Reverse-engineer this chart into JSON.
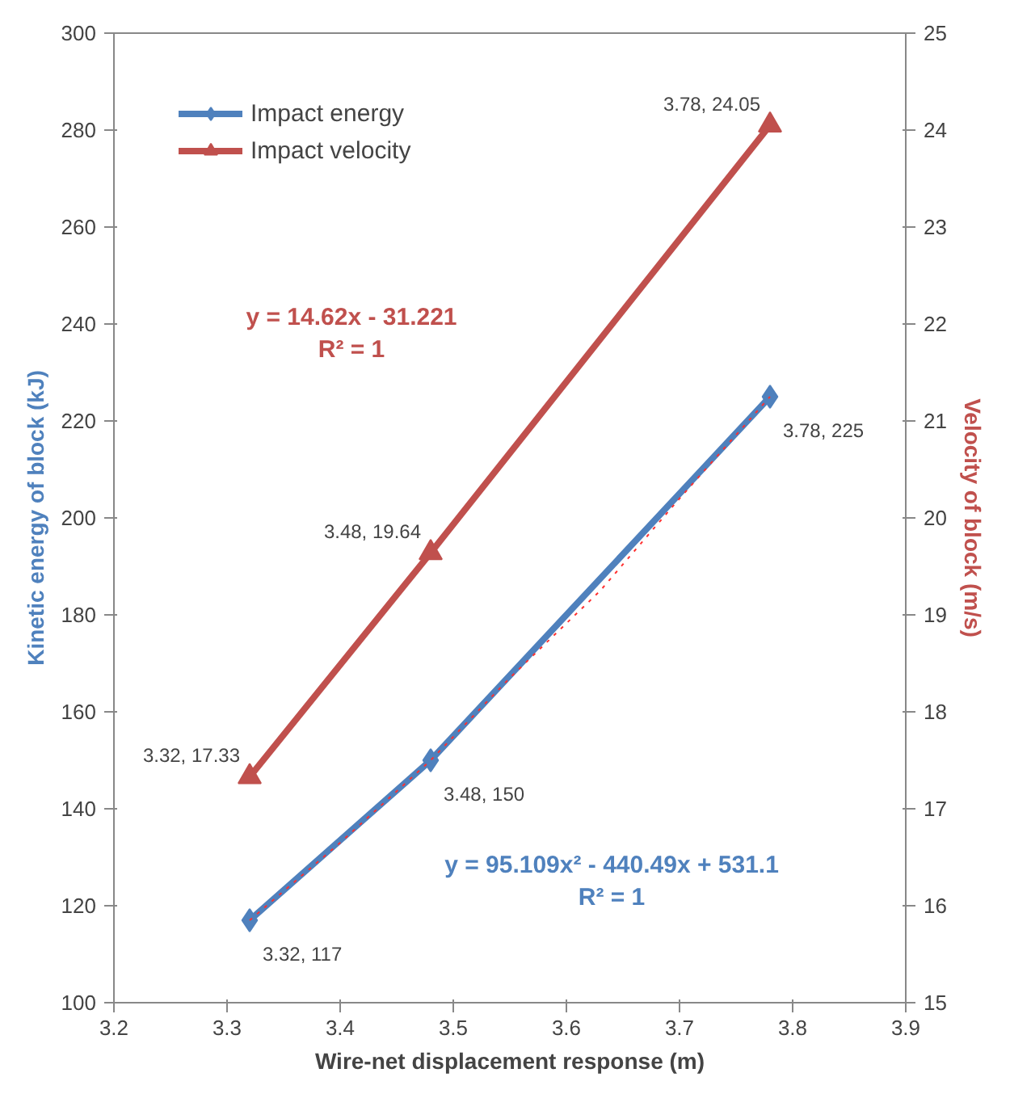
{
  "chart_data": {
    "type": "line",
    "xlabel": "Wire-net displacement response (m)",
    "ylabel": "Kinetic energy of block (kJ)",
    "y2label": "Velocity of block (m/s)",
    "xlim": [
      3.2,
      3.9
    ],
    "xticks": [
      3.2,
      3.3,
      3.4,
      3.5,
      3.6,
      3.7,
      3.8,
      3.9
    ],
    "ylim": [
      100,
      300
    ],
    "yticks": [
      100,
      120,
      140,
      160,
      180,
      200,
      220,
      240,
      260,
      280,
      300
    ],
    "y2lim": [
      15,
      25
    ],
    "y2ticks": [
      15,
      16,
      17,
      18,
      19,
      20,
      21,
      22,
      23,
      24,
      25
    ],
    "grid": false,
    "legend": "top left",
    "series": [
      {
        "name": "Impact energy",
        "color": "#4f81bd",
        "x": [
          3.32,
          3.48,
          3.78
        ],
        "values": [
          117,
          150,
          225
        ],
        "marker": "diamond",
        "value_labels": [
          "3.32, 117",
          "3.48, 150",
          "3.78, 225"
        ]
      },
      {
        "name": "Impact velocity",
        "color": "#c0504d",
        "x": [
          3.32,
          3.48,
          3.78
        ],
        "values": [
          17.33,
          19.64,
          24.05
        ],
        "axis": "y2",
        "marker": "triangle",
        "value_labels": [
          "3.32, 17.33",
          "3.48, 19.64",
          "3.78, 24.05"
        ]
      },
      {
        "color": "#ff3030",
        "x": [
          3.32,
          3.4,
          3.48,
          3.55,
          3.63,
          3.7,
          3.78
        ],
        "values": [
          117,
          133,
          150,
          167,
          185,
          204,
          225
        ],
        "marker": "none",
        "line_style": "dotted"
      }
    ],
    "annotations": [
      "y = 14.62x - 31.221\nR² = 1",
      "y = 95.109x² - 440.49x + 531.1\nR² = 1"
    ]
  }
}
